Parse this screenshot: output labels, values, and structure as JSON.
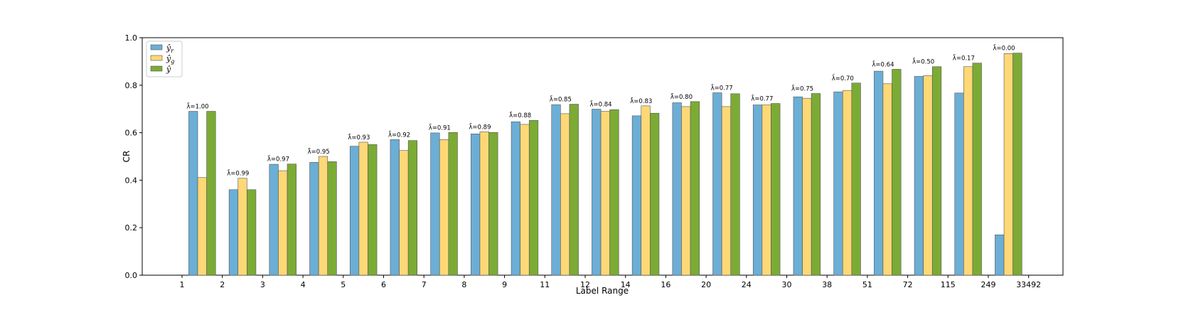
{
  "chart_data": {
    "type": "bar",
    "title": "",
    "xlabel": "Label Range",
    "ylabel": "CR",
    "ylim": [
      0,
      1.0
    ],
    "yticks": [
      "0.0",
      "0.2",
      "0.4",
      "0.6",
      "0.8",
      "1.0"
    ],
    "xtick_labels": [
      "1",
      "2",
      "3",
      "4",
      "5",
      "6",
      "7",
      "8",
      "9",
      "11",
      "12",
      "14",
      "16",
      "20",
      "24",
      "30",
      "38",
      "51",
      "72",
      "115",
      "249",
      "33492"
    ],
    "groups": [
      "1–2",
      "2–3",
      "3–4",
      "4–5",
      "5–6",
      "6–7",
      "7–8",
      "8–9",
      "9–11",
      "11–12",
      "12–14",
      "14–16",
      "16–20",
      "20–24",
      "24–30",
      "30–38",
      "38–51",
      "51–72",
      "72–115",
      "115–249",
      "249–33492"
    ],
    "annotations": [
      "λ̄=1.00",
      "λ̄=0.99",
      "λ̄=0.97",
      "λ̄=0.95",
      "λ̄=0.93",
      "λ̄=0.92",
      "λ̄=0.91",
      "λ̄=0.89",
      "λ̄=0.88",
      "λ̄=0.85",
      "λ̄=0.84",
      "λ̄=0.83",
      "λ̄=0.80",
      "λ̄=0.77",
      "λ̄=0.77",
      "λ̄=0.75",
      "λ̄=0.70",
      "λ̄=0.64",
      "λ̄=0.50",
      "λ̄=0.17",
      "λ̄=0.00"
    ],
    "series": [
      {
        "name": "ŷ_r",
        "legend_base": "ŷ",
        "legend_sub": "r",
        "color": "#6baed6",
        "values": [
          0.69,
          0.36,
          0.467,
          0.475,
          0.543,
          0.571,
          0.599,
          0.595,
          0.646,
          0.718,
          0.699,
          0.671,
          0.726,
          0.768,
          0.717,
          0.751,
          0.772,
          0.859,
          0.837,
          0.767,
          0.17
        ]
      },
      {
        "name": "ŷ_g",
        "legend_base": "ŷ",
        "legend_sub": "g",
        "color": "#fdd876",
        "values": [
          0.411,
          0.408,
          0.44,
          0.5,
          0.56,
          0.525,
          0.571,
          0.604,
          0.635,
          0.68,
          0.69,
          0.713,
          0.71,
          0.71,
          0.717,
          0.745,
          0.778,
          0.806,
          0.84,
          0.878,
          0.933
        ]
      },
      {
        "name": "ŷ",
        "legend_base": "ŷ",
        "legend_sub": "",
        "color": "#7bab35",
        "values": [
          0.69,
          0.36,
          0.468,
          0.478,
          0.55,
          0.567,
          0.601,
          0.601,
          0.652,
          0.72,
          0.697,
          0.682,
          0.731,
          0.764,
          0.723,
          0.765,
          0.809,
          0.867,
          0.878,
          0.893,
          0.935
        ]
      }
    ],
    "legend_position": "top-left",
    "grid": false
  }
}
